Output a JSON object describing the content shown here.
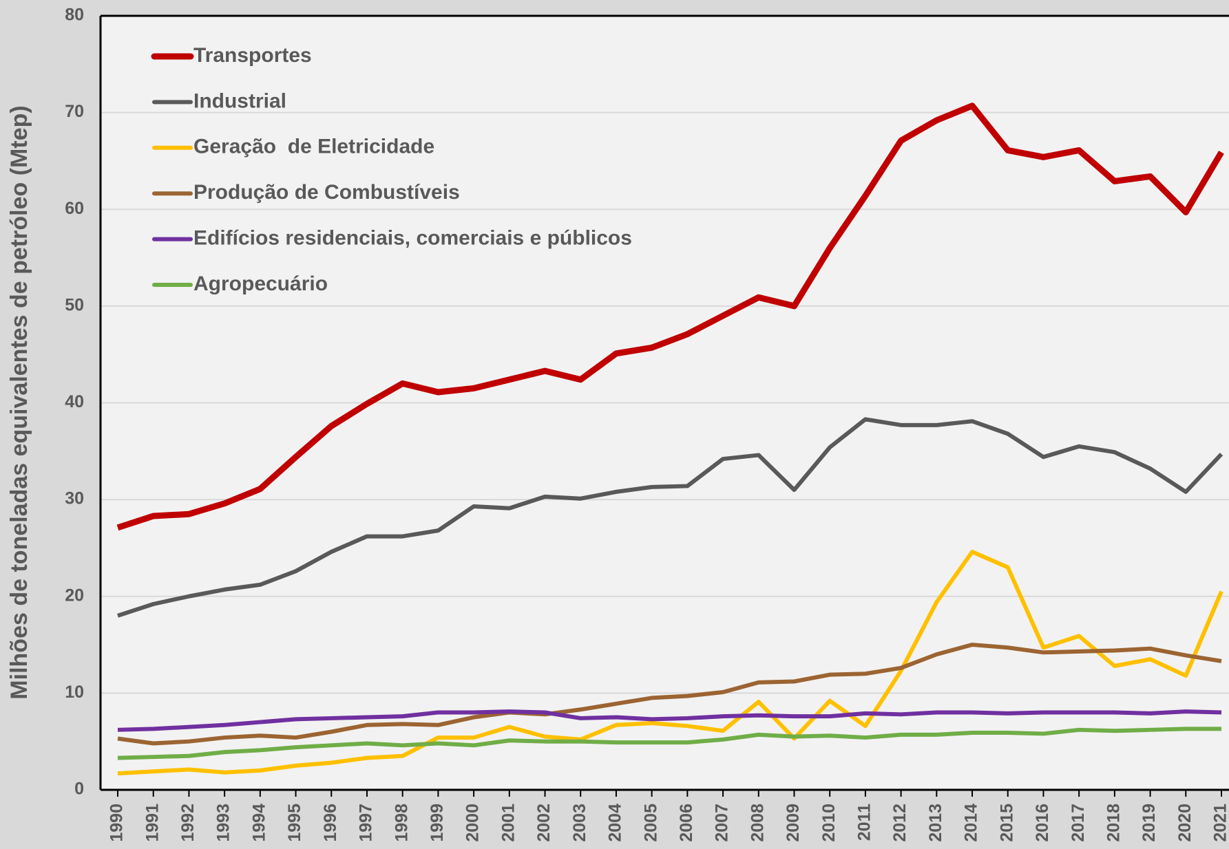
{
  "chart_data": {
    "type": "line",
    "y_label": "Milhões de toneladas equivalentes de petróleo (Mtep)",
    "categories": [
      "1990",
      "1991",
      "1992",
      "1993",
      "1994",
      "1995",
      "1996",
      "1997",
      "1998",
      "1999",
      "2000",
      "2001",
      "2002",
      "2003",
      "2004",
      "2005",
      "2006",
      "2007",
      "2008",
      "2009",
      "2010",
      "2011",
      "2012",
      "2013",
      "2014",
      "2015",
      "2016",
      "2017",
      "2018",
      "2019",
      "2020",
      "2021"
    ],
    "ylim": [
      0,
      80
    ],
    "yticks": [
      0,
      10,
      20,
      30,
      40,
      50,
      60,
      70,
      80
    ],
    "grid": true,
    "legend": "upper left",
    "series": [
      {
        "name": "Transportes",
        "color": "#c00000",
        "values": [
          27.1,
          28.3,
          28.5,
          29.6,
          31.1,
          34.4,
          37.6,
          39.9,
          42.0,
          41.1,
          41.5,
          42.4,
          43.3,
          42.4,
          45.1,
          45.7,
          47.1,
          49.0,
          50.9,
          50.0,
          56.0,
          61.4,
          67.1,
          69.2,
          70.7,
          66.1,
          65.4,
          66.1,
          62.9,
          63.4,
          59.7,
          65.9
        ]
      },
      {
        "name": "Industrial",
        "color": "#595959",
        "values": [
          18.0,
          19.2,
          20.0,
          20.7,
          21.2,
          22.6,
          24.6,
          26.2,
          26.2,
          26.8,
          29.3,
          29.1,
          30.3,
          30.1,
          30.8,
          31.3,
          31.4,
          34.2,
          34.6,
          31.0,
          35.4,
          38.3,
          37.7,
          37.7,
          38.1,
          36.8,
          34.4,
          35.5,
          34.9,
          33.2,
          30.8,
          34.7
        ]
      },
      {
        "name": "Geração  de Eletricidade",
        "color": "#ffc000",
        "values": [
          1.7,
          1.9,
          2.1,
          1.8,
          2.0,
          2.5,
          2.8,
          3.3,
          3.5,
          5.4,
          5.4,
          6.5,
          5.5,
          5.2,
          6.7,
          6.9,
          6.6,
          6.1,
          9.1,
          5.3,
          9.2,
          6.6,
          12.3,
          19.4,
          24.6,
          23.0,
          14.7,
          15.9,
          12.8,
          13.5,
          11.8,
          20.5
        ]
      },
      {
        "name": "Produção de Combustíveis",
        "color": "#9c6432",
        "values": [
          5.3,
          4.8,
          5.0,
          5.4,
          5.6,
          5.4,
          6.0,
          6.7,
          6.8,
          6.7,
          7.5,
          8.0,
          7.8,
          8.3,
          8.9,
          9.5,
          9.7,
          10.1,
          11.1,
          11.2,
          11.9,
          12.0,
          12.6,
          14.0,
          15.0,
          14.7,
          14.2,
          14.3,
          14.4,
          14.6,
          13.9,
          13.3
        ]
      },
      {
        "name": "Edifícios residenciais, comerciais e públicos",
        "color": "#7030a0",
        "values": [
          6.2,
          6.3,
          6.5,
          6.7,
          7.0,
          7.3,
          7.4,
          7.5,
          7.6,
          8.0,
          8.0,
          8.1,
          8.0,
          7.4,
          7.5,
          7.3,
          7.4,
          7.6,
          7.7,
          7.6,
          7.6,
          7.9,
          7.8,
          8.0,
          8.0,
          7.9,
          8.0,
          8.0,
          8.0,
          7.9,
          8.1,
          8.0
        ]
      },
      {
        "name": "Agropecuário",
        "color": "#70ad47",
        "values": [
          3.3,
          3.4,
          3.5,
          3.9,
          4.1,
          4.4,
          4.6,
          4.8,
          4.6,
          4.8,
          4.6,
          5.1,
          5.0,
          5.0,
          4.9,
          4.9,
          4.9,
          5.2,
          5.7,
          5.5,
          5.6,
          5.4,
          5.7,
          5.7,
          5.9,
          5.9,
          5.8,
          6.2,
          6.1,
          6.2,
          6.3,
          6.3
        ]
      }
    ]
  }
}
